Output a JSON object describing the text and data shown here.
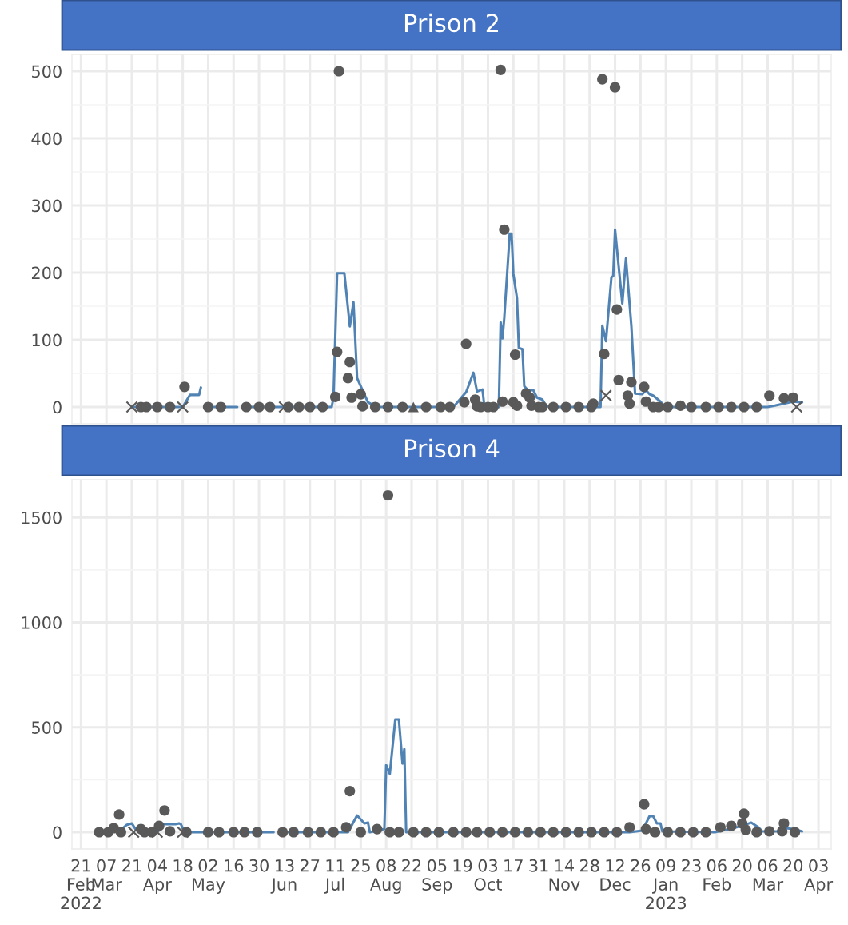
{
  "chart_data": [
    {
      "type": "line",
      "title": "Prison 2",
      "grid": true,
      "tick_labels": "y",
      "xlim": [
        "2022-02-16",
        "2023-04-10"
      ],
      "ylim": [
        -25,
        525
      ],
      "xticks": [
        {
          "value": "2022-02-21",
          "label": null
        },
        {
          "value": "2022-03-07",
          "label": null
        },
        {
          "value": "2022-03-21",
          "label": null
        },
        {
          "value": "2022-04-04",
          "label": null
        },
        {
          "value": "2022-04-18",
          "label": null
        },
        {
          "value": "2022-05-02",
          "label": null
        },
        {
          "value": "2022-05-16",
          "label": null
        },
        {
          "value": "2022-05-30",
          "label": null
        },
        {
          "value": "2022-06-13",
          "label": null
        },
        {
          "value": "2022-06-27",
          "label": null
        },
        {
          "value": "2022-07-11",
          "label": null
        },
        {
          "value": "2022-07-25",
          "label": null
        },
        {
          "value": "2022-08-08",
          "label": null
        },
        {
          "value": "2022-08-22",
          "label": null
        },
        {
          "value": "2022-09-05",
          "label": null
        },
        {
          "value": "2022-09-19",
          "label": null
        },
        {
          "value": "2022-10-03",
          "label": null
        },
        {
          "value": "2022-10-17",
          "label": null
        },
        {
          "value": "2022-10-31",
          "label": null
        },
        {
          "value": "2022-11-14",
          "label": null
        },
        {
          "value": "2022-11-28",
          "label": null
        },
        {
          "value": "2022-12-12",
          "label": null
        },
        {
          "value": "2022-12-26",
          "label": null
        },
        {
          "value": "2023-01-09",
          "label": null
        },
        {
          "value": "2023-01-23",
          "label": null
        },
        {
          "value": "2023-02-06",
          "label": null
        },
        {
          "value": "2023-02-20",
          "label": null
        },
        {
          "value": "2023-03-06",
          "label": null
        },
        {
          "value": "2023-03-20",
          "label": null
        },
        {
          "value": "2023-04-03",
          "label": null
        }
      ],
      "yticks": [
        0,
        {
          "value": 50,
          "label": null
        },
        100,
        {
          "value": 150,
          "label": null
        },
        200,
        {
          "value": 250,
          "label": null
        },
        300,
        {
          "value": 350,
          "label": null
        },
        400,
        {
          "value": 450,
          "label": null
        },
        500
      ],
      "series": [
        {
          "color": "#5083b3",
          "marker": "none",
          "line_style": "solid",
          "x": [
            "2022-03-21",
            "2022-04-18",
            "2022-04-22",
            "2022-04-27",
            "2022-04-28",
            "2022-04-30",
            "2022-05-02",
            "2022-05-18",
            "2022-05-20",
            "2022-05-23",
            "2022-07-09",
            "2022-07-10",
            "2022-07-12",
            "2022-07-16",
            "2022-07-19",
            "2022-07-21",
            "2022-07-23",
            "2022-07-27",
            "2022-07-29",
            "2022-08-03",
            "2022-09-14",
            "2022-09-20",
            "2022-09-21",
            "2022-09-25",
            "2022-09-27",
            "2022-09-30",
            "2022-10-01",
            "2022-10-09",
            "2022-10-10",
            "2022-10-11",
            "2022-10-12",
            "2022-10-15",
            "2022-10-16",
            "2022-10-17",
            "2022-10-19",
            "2022-10-20",
            "2022-10-22",
            "2022-10-23",
            "2022-10-25",
            "2022-10-28",
            "2022-10-30",
            "2022-11-02",
            "2022-11-04",
            "2022-11-06",
            "2022-12-04",
            "2022-12-05",
            "2022-12-07",
            "2022-12-10",
            "2022-12-11",
            "2022-12-12",
            "2022-12-16",
            "2022-12-18",
            "2022-12-21",
            "2022-12-23",
            "2022-12-27",
            "2022-12-29",
            "2022-12-31",
            "2023-01-02",
            "2023-01-06",
            "2023-01-08",
            "2023-01-10",
            "2023-03-06",
            "2023-03-10",
            "2023-03-20",
            "2023-03-25"
          ],
          "values": [
            0,
            0,
            18,
            18,
            29,
            null,
            0,
            0,
            null,
            0,
            0,
            14,
            199,
            199,
            120,
            156,
            43,
            19,
            7,
            0,
            0,
            19,
            22,
            51,
            23,
            26,
            2,
            0,
            126,
            102,
            133,
            258,
            258,
            198,
            162,
            88,
            86,
            31,
            25,
            25,
            14,
            11,
            2,
            0,
            0,
            121,
            98,
            193,
            195,
            264,
            154,
            221,
            120,
            20,
            19,
            25,
            19,
            17,
            8,
            1,
            0,
            0,
            2,
            8,
            7
          ]
        },
        {
          "type": "scatter",
          "color": "#595959",
          "marker": "circle",
          "x": [
            "2022-03-26",
            "2022-03-29",
            "2022-04-04",
            "2022-04-11",
            "2022-04-19",
            "2022-05-02",
            "2022-05-09",
            "2022-05-23",
            "2022-05-30",
            "2022-06-05",
            "2022-06-15",
            "2022-06-21",
            "2022-06-27",
            "2022-07-04",
            "2022-07-11",
            "2022-07-12",
            "2022-07-13",
            "2022-07-18",
            "2022-07-19",
            "2022-07-20",
            "2022-07-25",
            "2022-07-26",
            "2022-08-02",
            "2022-08-09",
            "2022-08-17",
            "2022-08-30",
            "2022-09-07",
            "2022-09-12",
            "2022-09-20",
            "2022-09-21",
            "2022-09-26",
            "2022-09-27",
            "2022-09-29",
            "2022-10-03",
            "2022-10-06",
            "2022-10-10",
            "2022-10-11",
            "2022-10-12",
            "2022-10-17",
            "2022-10-18",
            "2022-10-19",
            "2022-10-24",
            "2022-10-26",
            "2022-10-27",
            "2022-10-31",
            "2022-11-02",
            "2022-11-08",
            "2022-11-15",
            "2022-11-22",
            "2022-11-29",
            "2022-11-30",
            "2022-12-05",
            "2022-12-06",
            "2022-12-12",
            "2022-12-13",
            "2022-12-14",
            "2022-12-19",
            "2022-12-20",
            "2022-12-21",
            "2022-12-28",
            "2022-12-29",
            "2023-01-02",
            "2023-01-05",
            "2023-01-10",
            "2023-01-17",
            "2023-01-23",
            "2023-01-31",
            "2023-02-07",
            "2023-02-14",
            "2023-02-21",
            "2023-02-28",
            "2023-03-07",
            "2023-03-15",
            "2023-03-20"
          ],
          "values": [
            0,
            0,
            0,
            0,
            30,
            0,
            0,
            0,
            0,
            0,
            0,
            0,
            0,
            0,
            15,
            82,
            500,
            43,
            67,
            14,
            19,
            1,
            0,
            0,
            0,
            0,
            0,
            0,
            7,
            94,
            11,
            1,
            0,
            0,
            0,
            502,
            8,
            264,
            7,
            78,
            2,
            20,
            14,
            2,
            0,
            0,
            0,
            0,
            0,
            0,
            5,
            488,
            79,
            476,
            145,
            40,
            17,
            5,
            37,
            30,
            8,
            0,
            0,
            0,
            2,
            0,
            0,
            0,
            0,
            0,
            0,
            17,
            13,
            14
          ]
        },
        {
          "type": "scatter",
          "color": "#595959",
          "marker": "cross",
          "x": [
            "2022-03-21",
            "2022-04-18",
            "2022-06-13",
            "2022-12-07",
            "2023-03-22"
          ],
          "values": [
            0,
            0,
            0,
            17,
            0
          ]
        },
        {
          "type": "scatter",
          "color": "#595959",
          "marker": "triangle",
          "x": [
            "2022-08-23"
          ],
          "values": [
            0
          ]
        }
      ]
    },
    {
      "type": "line",
      "title": "Prison 4",
      "grid": true,
      "xlim": [
        "2022-02-16",
        "2023-04-10"
      ],
      "ylim": [
        -80,
        1680
      ],
      "xticks": [
        {
          "value": "2022-02-21",
          "label": "21\nFeb\n2022"
        },
        {
          "value": "2022-03-07",
          "label": "07\nMar"
        },
        {
          "value": "2022-03-21",
          "label": "21"
        },
        {
          "value": "2022-04-04",
          "label": "04\nApr"
        },
        {
          "value": "2022-04-18",
          "label": "18"
        },
        {
          "value": "2022-05-02",
          "label": "02\nMay"
        },
        {
          "value": "2022-05-16",
          "label": "16"
        },
        {
          "value": "2022-05-30",
          "label": "30"
        },
        {
          "value": "2022-06-13",
          "label": "13\nJun"
        },
        {
          "value": "2022-06-27",
          "label": "27"
        },
        {
          "value": "2022-07-11",
          "label": "11\nJul"
        },
        {
          "value": "2022-07-25",
          "label": "25"
        },
        {
          "value": "2022-08-08",
          "label": "08\nAug"
        },
        {
          "value": "2022-08-22",
          "label": "22"
        },
        {
          "value": "2022-09-05",
          "label": "05\nSep"
        },
        {
          "value": "2022-09-19",
          "label": "19"
        },
        {
          "value": "2022-10-03",
          "label": "03\nOct"
        },
        {
          "value": "2022-10-17",
          "label": "17"
        },
        {
          "value": "2022-10-31",
          "label": "31"
        },
        {
          "value": "2022-11-14",
          "label": "14\nNov"
        },
        {
          "value": "2022-11-28",
          "label": "28"
        },
        {
          "value": "2022-12-12",
          "label": "12\nDec"
        },
        {
          "value": "2022-12-26",
          "label": "26"
        },
        {
          "value": "2023-01-09",
          "label": "09\nJan\n2023"
        },
        {
          "value": "2023-01-23",
          "label": "23"
        },
        {
          "value": "2023-02-06",
          "label": "06\nFeb"
        },
        {
          "value": "2023-02-20",
          "label": "20"
        },
        {
          "value": "2023-03-06",
          "label": "06\nMar"
        },
        {
          "value": "2023-03-20",
          "label": "20"
        },
        {
          "value": "2023-04-03",
          "label": "03\nApr"
        }
      ],
      "yticks": [
        0,
        {
          "value": 250,
          "label": null
        },
        500,
        {
          "value": 750,
          "label": null
        },
        1000,
        {
          "value": 1250,
          "label": null
        },
        1500
      ],
      "series": [
        {
          "color": "#5083b3",
          "marker": "none",
          "line_style": "solid",
          "x": [
            "2022-03-03",
            "2022-03-14",
            "2022-03-18",
            "2022-03-21",
            "2022-03-23",
            "2022-03-24",
            "2022-04-05",
            "2022-04-07",
            "2022-04-14",
            "2022-04-16",
            "2022-04-17",
            "2022-04-19",
            "2022-04-29",
            "2022-05-01",
            "2022-05-02",
            "2022-06-07",
            "2022-06-09",
            "2022-06-11",
            "2022-07-18",
            "2022-07-23",
            "2022-07-27",
            "2022-07-29",
            "2022-07-30",
            "2022-08-07",
            "2022-08-08",
            "2022-08-10",
            "2022-08-13",
            "2022-08-15",
            "2022-08-17",
            "2022-08-18",
            "2022-08-19",
            "2022-12-20",
            "2022-12-27",
            "2022-12-31",
            "2023-01-02",
            "2023-01-04",
            "2023-01-06",
            "2023-01-07",
            "2023-02-05",
            "2023-02-13",
            "2023-02-20",
            "2023-02-25",
            "2023-03-01",
            "2023-03-03",
            "2023-03-12",
            "2023-03-16",
            "2023-03-20",
            "2023-03-25"
          ],
          "values": [
            0,
            4,
            34,
            42,
            15,
            8,
            8,
            38,
            38,
            42,
            38,
            0,
            0,
            null,
            0,
            0,
            null,
            0,
            0,
            80,
            42,
            46,
            0,
            15,
            320,
            278,
            537,
            537,
            327,
            396,
            0,
            0,
            8,
            76,
            76,
            42,
            42,
            4,
            0,
            15,
            30,
            46,
            23,
            4,
            4,
            19,
            15,
            4
          ]
        },
        {
          "type": "scatter",
          "color": "#595959",
          "marker": "circle",
          "x": [
            "2022-03-03",
            "2022-03-08",
            "2022-03-11",
            "2022-03-14",
            "2022-03-15",
            "2022-03-26",
            "2022-03-28",
            "2022-04-01",
            "2022-04-05",
            "2022-04-08",
            "2022-04-11",
            "2022-04-20",
            "2022-05-02",
            "2022-05-08",
            "2022-05-16",
            "2022-05-22",
            "2022-05-29",
            "2022-06-12",
            "2022-06-18",
            "2022-06-26",
            "2022-07-03",
            "2022-07-10",
            "2022-07-17",
            "2022-07-19",
            "2022-07-25",
            "2022-08-03",
            "2022-08-09",
            "2022-08-10",
            "2022-08-15",
            "2022-08-23",
            "2022-08-30",
            "2022-09-06",
            "2022-09-14",
            "2022-09-21",
            "2022-09-27",
            "2022-10-04",
            "2022-10-11",
            "2022-10-18",
            "2022-10-25",
            "2022-11-01",
            "2022-11-08",
            "2022-11-15",
            "2022-11-22",
            "2022-11-29",
            "2022-12-06",
            "2022-12-13",
            "2022-12-20",
            "2022-12-28",
            "2022-12-29",
            "2023-01-03",
            "2023-01-10",
            "2023-01-17",
            "2023-01-24",
            "2023-01-31",
            "2023-02-08",
            "2023-02-14",
            "2023-02-20",
            "2023-02-21",
            "2023-02-22",
            "2023-02-28",
            "2023-03-07",
            "2023-03-14",
            "2023-03-15",
            "2023-03-21"
          ],
          "values": [
            0,
            0,
            19,
            84,
            0,
            15,
            0,
            0,
            30,
            103,
            4,
            0,
            0,
            0,
            0,
            0,
            0,
            0,
            0,
            0,
            0,
            0,
            23,
            196,
            0,
            15,
            1605,
            0,
            0,
            0,
            0,
            0,
            0,
            0,
            0,
            0,
            0,
            0,
            0,
            0,
            0,
            0,
            0,
            0,
            0,
            0,
            23,
            133,
            15,
            0,
            0,
            0,
            0,
            0,
            23,
            30,
            42,
            88,
            11,
            0,
            4,
            4,
            42,
            0
          ]
        },
        {
          "type": "scatter",
          "color": "#595959",
          "marker": "cross",
          "x": [
            "2022-03-22",
            "2022-04-04",
            "2022-04-18"
          ],
          "values": [
            0,
            0,
            0
          ]
        }
      ]
    }
  ]
}
